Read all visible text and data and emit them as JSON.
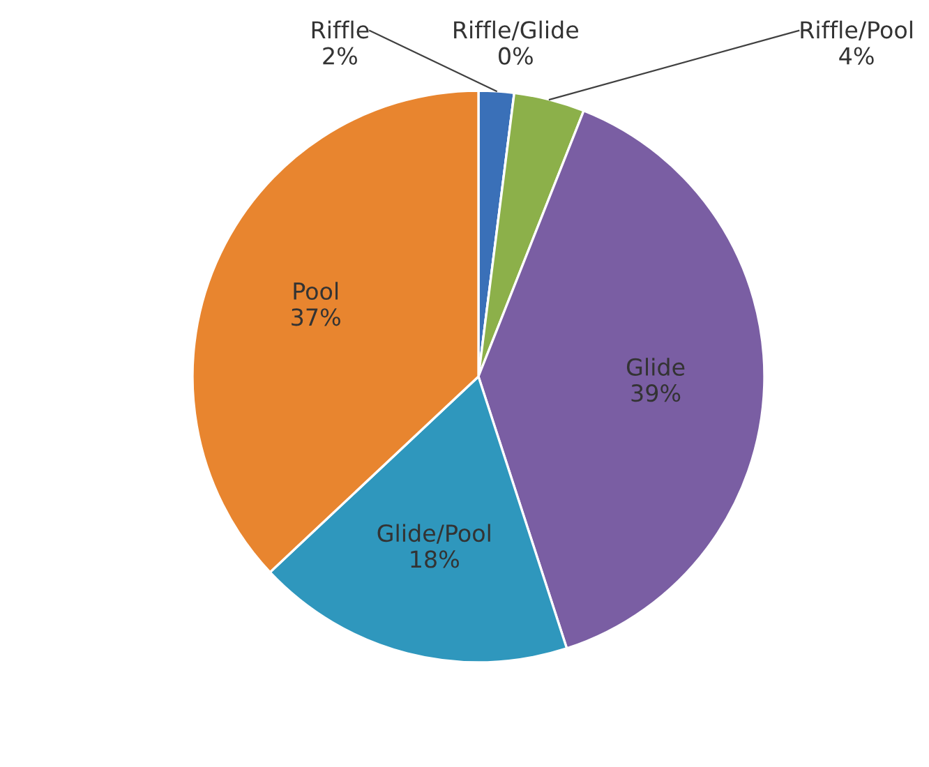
{
  "chart_data": {
    "type": "pie",
    "categories": [
      "Riffle",
      "Riffle/Glide",
      "Riffle/Pool",
      "Glide",
      "Glide/Pool",
      "Pool"
    ],
    "values": [
      2,
      0,
      4,
      39,
      18,
      37
    ],
    "colors": [
      "#3a70b8",
      "#c0504d",
      "#8cb04a",
      "#7a5ea3",
      "#2f97bd",
      "#e8852f"
    ],
    "value_labels": [
      "2%",
      "0%",
      "4%",
      "39%",
      "18%",
      "37%"
    ]
  }
}
